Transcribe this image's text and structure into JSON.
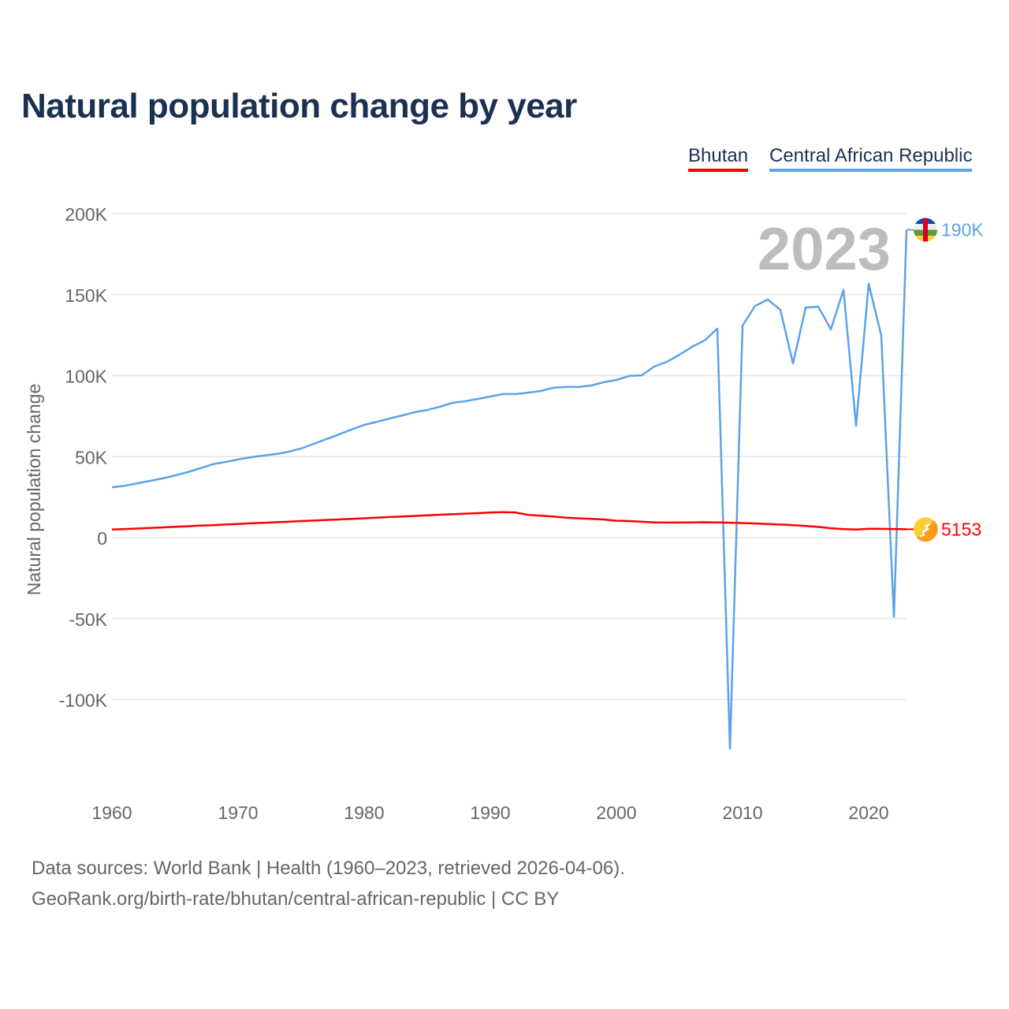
{
  "title": "Natural population change by year",
  "chart_data": {
    "type": "line",
    "title": "Natural population change by year",
    "xlabel": "",
    "ylabel": "Natural population change",
    "xlim": [
      1960,
      2023
    ],
    "ylim": [
      -130000,
      200000
    ],
    "grid": true,
    "legend_position": "top-right",
    "x_ticks": [
      "1960",
      "1970",
      "1980",
      "1990",
      "2000",
      "2010",
      "2020"
    ],
    "y_ticks": [
      {
        "value": 200000,
        "label": "200K"
      },
      {
        "value": 150000,
        "label": "150K"
      },
      {
        "value": 100000,
        "label": "100K"
      },
      {
        "value": 50000,
        "label": "50K"
      },
      {
        "value": 0,
        "label": "0"
      },
      {
        "value": -50000,
        "label": "-50K"
      },
      {
        "value": -100000,
        "label": "-100K"
      }
    ],
    "year_annotation": "2023",
    "x": [
      1960,
      1961,
      1962,
      1963,
      1964,
      1965,
      1966,
      1967,
      1968,
      1969,
      1970,
      1971,
      1972,
      1973,
      1974,
      1975,
      1976,
      1977,
      1978,
      1979,
      1980,
      1981,
      1982,
      1983,
      1984,
      1985,
      1986,
      1987,
      1988,
      1989,
      1990,
      1991,
      1992,
      1993,
      1994,
      1995,
      1996,
      1997,
      1998,
      1999,
      2000,
      2001,
      2002,
      2003,
      2004,
      2005,
      2006,
      2007,
      2008,
      2009,
      2010,
      2011,
      2012,
      2013,
      2014,
      2015,
      2016,
      2017,
      2018,
      2019,
      2020,
      2021,
      2022,
      2023
    ],
    "series": [
      {
        "name": "Bhutan",
        "color": "#ff0000",
        "end_label": "5153",
        "values": [
          5000,
          5300,
          5600,
          6000,
          6300,
          6700,
          7000,
          7400,
          7700,
          8100,
          8400,
          8800,
          9100,
          9500,
          9800,
          10200,
          10500,
          10900,
          11200,
          11600,
          11900,
          12300,
          12700,
          13000,
          13400,
          13700,
          14100,
          14400,
          14800,
          15100,
          15500,
          15700,
          15500,
          14000,
          13600,
          13000,
          12300,
          11900,
          11600,
          11200,
          10400,
          10200,
          9800,
          9400,
          9300,
          9300,
          9400,
          9500,
          9400,
          9200,
          9000,
          8700,
          8400,
          8100,
          7700,
          7200,
          6600,
          5800,
          5200,
          5000,
          5500,
          5400,
          5300,
          5153
        ]
      },
      {
        "name": "Central African Republic",
        "color": "#5ba3e8",
        "end_label": "190K",
        "values": [
          31100,
          32000,
          33500,
          35000,
          36500,
          38400,
          40400,
          42800,
          45300,
          46700,
          48200,
          49600,
          50600,
          51600,
          53000,
          55000,
          57900,
          60800,
          63700,
          66700,
          69600,
          71500,
          73500,
          75400,
          77400,
          78800,
          80800,
          83200,
          84200,
          85600,
          87100,
          88600,
          88600,
          89500,
          90500,
          92500,
          93000,
          93000,
          93900,
          95900,
          97300,
          99800,
          100200,
          105600,
          108500,
          112900,
          117800,
          121700,
          129000,
          -130400,
          130900,
          143000,
          147000,
          140600,
          107500,
          142000,
          142600,
          128500,
          153000,
          69000,
          156700,
          124600,
          -49000,
          190000
        ]
      }
    ]
  },
  "sources": {
    "line1": "Data sources: World Bank | Health (1960–2023, retrieved 2026-04-06).",
    "line2": "GeoRank.org/birth-rate/bhutan/central-african-republic | CC BY"
  }
}
